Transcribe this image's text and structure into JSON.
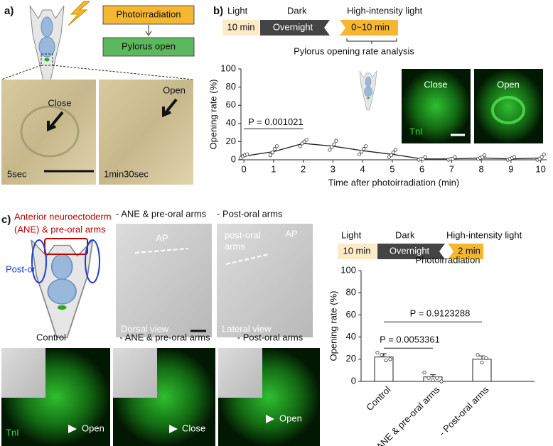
{
  "panel_labels": [
    "a)",
    "b)",
    "c)"
  ],
  "panel_a": {
    "flow": [
      "Photoirradiation",
      "Pylorus open"
    ],
    "photos": [
      {
        "label": "Close",
        "time": "5sec"
      },
      {
        "label": "Open",
        "time": "1min30sec"
      }
    ]
  },
  "panel_b": {
    "timeline": {
      "phases": [
        "Light",
        "Dark",
        "High-intensity light"
      ],
      "durations": [
        "10 min",
        "Overnight",
        "0~10 min"
      ],
      "note": "Pylorus opening rate analysis"
    },
    "inset": {
      "labels": [
        "Close",
        "Open"
      ],
      "stain": "TnI"
    }
  },
  "panel_c": {
    "diagram": {
      "anterior": [
        "Anterior neuroectoderm",
        "(ANE) &  pre-oral arms"
      ],
      "posterior": "Post-oral arms"
    },
    "top_photos": [
      {
        "title": "- ANE & pre-oral arms",
        "labels": [
          "AP"
        ],
        "view": "Dorsal view"
      },
      {
        "title": "- Post-oral arms",
        "labels": [
          "post-oral",
          "arms",
          "AP"
        ],
        "view": "Lateral view"
      }
    ],
    "bottom_photos": [
      {
        "title": "Control",
        "label": "Open",
        "stain": "TnI"
      },
      {
        "title": "- ANE & pre-oral arms",
        "label": "Close"
      },
      {
        "title": "- Post-oral arms",
        "label": "Open"
      }
    ],
    "timeline": {
      "phases": [
        "Light",
        "Dark",
        "High-intensity light"
      ],
      "durations": [
        "10 min",
        "Overnight",
        "2 min"
      ]
    }
  },
  "chart_data": [
    {
      "type": "line",
      "x": [
        0,
        1,
        2,
        3,
        4,
        5,
        6,
        7,
        8,
        9,
        10
      ],
      "values": [
        4,
        9,
        18,
        15,
        10,
        6,
        1,
        1,
        2,
        1,
        2
      ],
      "points": [
        [
          2,
          4,
          5,
          6
        ],
        [
          5,
          8,
          12,
          15
        ],
        [
          15,
          18,
          20,
          22
        ],
        [
          11,
          14,
          17,
          21
        ],
        [
          6,
          9,
          12,
          15
        ],
        [
          3,
          5,
          8,
          11
        ],
        [
          0,
          1,
          1,
          3
        ],
        [
          0,
          1,
          1,
          3
        ],
        [
          1,
          2,
          3,
          5
        ],
        [
          0,
          1,
          2,
          3
        ],
        [
          0,
          1,
          3,
          6
        ]
      ],
      "color": "#222222",
      "xlim": [
        -0.1,
        10.2
      ],
      "xticks": [
        0,
        1,
        2,
        3,
        4,
        5,
        6,
        7,
        8,
        9,
        10
      ],
      "ylim": [
        0,
        100
      ],
      "yticks": [
        0,
        20,
        40,
        60,
        80,
        100
      ],
      "xlabel": "Time after photoirradiation (min)",
      "ylabel": "Opening rate (%)",
      "annotations": [
        {
          "text": "P = 0.001021",
          "from": 0,
          "to": 2
        }
      ]
    },
    {
      "type": "bar",
      "title": "Photoirradiation",
      "categories": [
        "Control",
        "- ANE & pre-oral arms",
        "- Post-oral arms"
      ],
      "values": [
        22,
        4,
        20
      ],
      "errors": [
        3,
        2,
        3
      ],
      "points": [
        [
          26,
          24,
          19,
          20
        ],
        [
          8,
          3,
          1,
          3,
          0
        ],
        [
          24,
          17,
          21
        ]
      ],
      "color": "#ffffff",
      "ylim": [
        0,
        100
      ],
      "yticks": [
        0,
        20,
        40,
        60,
        80,
        100
      ],
      "ylabel": "Opening rate (%)",
      "annotations": [
        {
          "text": "P = 0.0053361",
          "from": 0,
          "to": 1
        },
        {
          "text": "P = 0.9123288",
          "from": 0,
          "to": 2
        }
      ]
    }
  ]
}
